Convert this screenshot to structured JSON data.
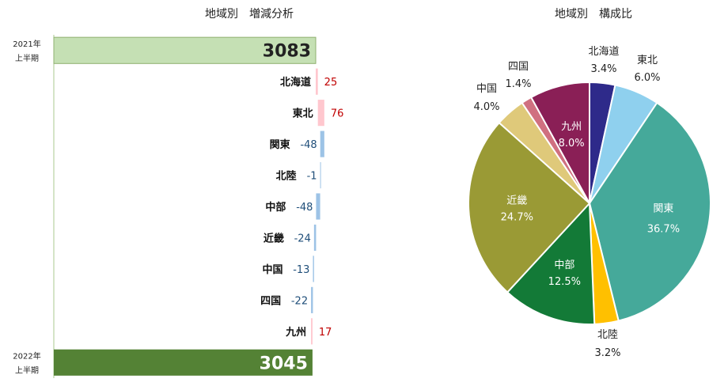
{
  "chart_data": [
    {
      "type": "bar",
      "subtype": "waterfall",
      "title": "地域別　増減分析",
      "start": {
        "label_line1": "2021年",
        "label_line2": "上半期",
        "value": 3083
      },
      "end": {
        "label_line1": "2022年",
        "label_line2": "上半期",
        "value": 3045
      },
      "categories": [
        "北海道",
        "東北",
        "関東",
        "北陸",
        "中部",
        "近畿",
        "中国",
        "四国",
        "九州"
      ],
      "values": [
        25,
        76,
        -48,
        -1,
        -48,
        -24,
        -13,
        -22,
        17
      ],
      "colors": {
        "start": "#c5e0b4",
        "end": "#548235",
        "increase": "#ffc7ce",
        "decrease": "#9dc3e6",
        "pos_text": "#c00000",
        "neg_text": "#1f4e79"
      }
    },
    {
      "type": "pie",
      "title": "地域別　構成比",
      "categories": [
        "北海道",
        "東北",
        "関東",
        "北陸",
        "中部",
        "近畿",
        "中国",
        "四国",
        "九州"
      ],
      "values": [
        3.4,
        6.0,
        36.7,
        3.2,
        12.5,
        24.7,
        4.0,
        1.4,
        8.0
      ],
      "labels": [
        "3.4%",
        "6.0%",
        "36.7%",
        "3.2%",
        "12.5%",
        "24.7%",
        "4.0%",
        "1.4%",
        "8.0%"
      ],
      "colors": [
        "#2e2a8a",
        "#8fd0ee",
        "#45a99a",
        "#ffc000",
        "#137a37",
        "#9a9a35",
        "#dfc97a",
        "#d07080",
        "#8a1f56"
      ]
    }
  ]
}
